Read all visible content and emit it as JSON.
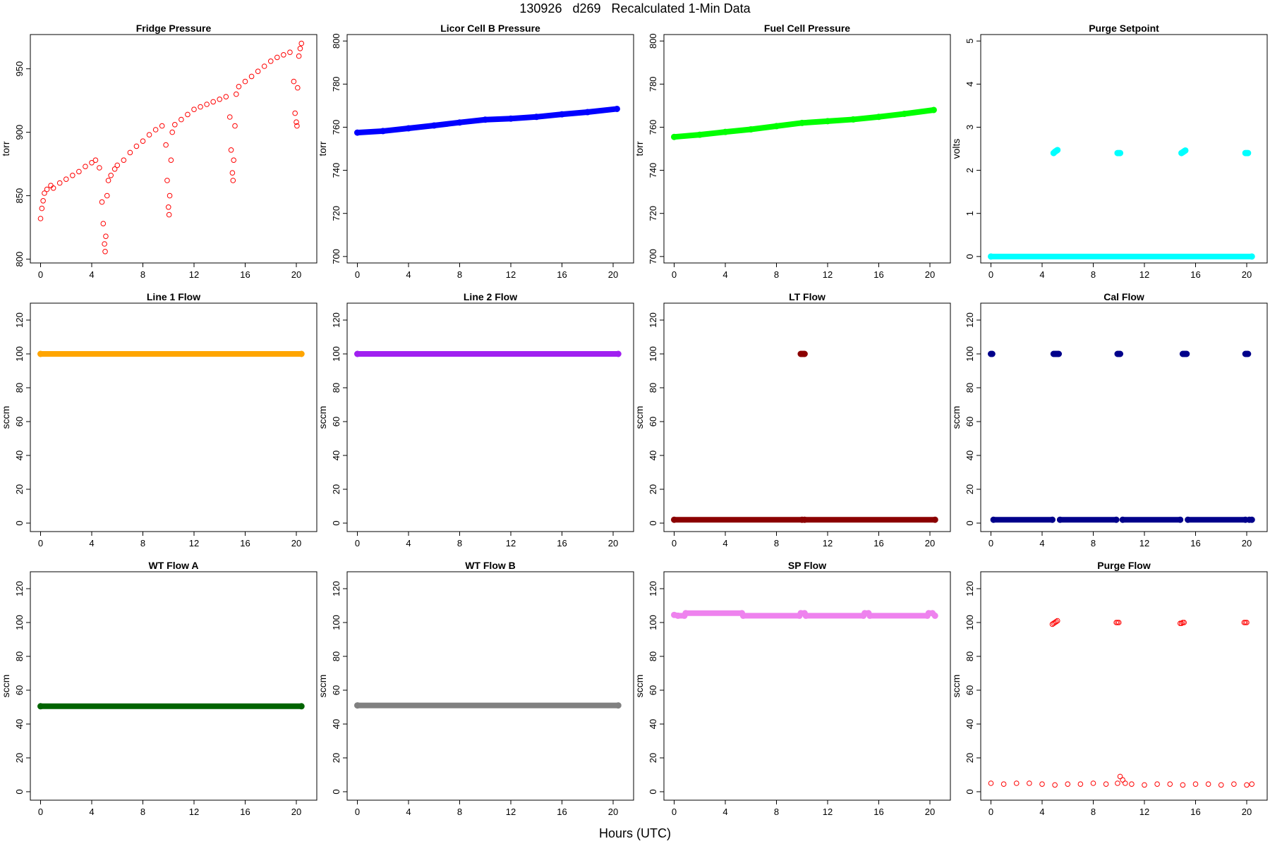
{
  "figure": {
    "title": "130926   d269   Recalculated 1-Min Data",
    "xlabel": "Hours (UTC)"
  },
  "chart_data": [
    {
      "type": "scatter",
      "title": "Fridge Pressure",
      "ylabel": "torr",
      "color": "#ff0000",
      "marker": "open-circle",
      "xlim": [
        -0.8,
        21.6
      ],
      "ylim": [
        797,
        977
      ],
      "xticks": [
        0,
        4,
        8,
        12,
        16,
        20
      ],
      "yticks": [
        800,
        850,
        900,
        950
      ],
      "series": [
        {
          "x": [
            0.0,
            0.1,
            0.2,
            0.3,
            0.5,
            0.8,
            1.0,
            1.5,
            2.0,
            2.5,
            3.0,
            3.5,
            4.0,
            4.3,
            4.6,
            4.8,
            4.9,
            5.0,
            5.05,
            5.1,
            5.2,
            5.3,
            5.5,
            5.8,
            6.0,
            6.5,
            7.0,
            7.5,
            8.0,
            8.5,
            9.0,
            9.5,
            9.8,
            9.9,
            10.0,
            10.05,
            10.1,
            10.2,
            10.3,
            10.5,
            11.0,
            11.5,
            12.0,
            12.5,
            13.0,
            13.5,
            14.0,
            14.5,
            14.8,
            14.9,
            15.0,
            15.05,
            15.1,
            15.2,
            15.3,
            15.5,
            16.0,
            16.5,
            17.0,
            17.5,
            18.0,
            18.5,
            19.0,
            19.5,
            19.8,
            19.9,
            20.0,
            20.05,
            20.1,
            20.2,
            20.3,
            20.4
          ],
          "y": [
            832,
            840,
            846,
            852,
            855,
            858,
            856,
            860,
            863,
            866,
            869,
            873,
            876,
            878,
            872,
            845,
            828,
            812,
            806,
            818,
            850,
            862,
            866,
            871,
            874,
            878,
            884,
            889,
            893,
            898,
            902,
            905,
            890,
            862,
            841,
            835,
            850,
            878,
            900,
            906,
            910,
            914,
            918,
            920,
            922,
            924,
            926,
            928,
            912,
            886,
            868,
            862,
            878,
            905,
            930,
            936,
            940,
            944,
            948,
            952,
            956,
            959,
            961,
            963,
            940,
            915,
            908,
            905,
            935,
            960,
            966,
            970
          ]
        }
      ]
    },
    {
      "type": "scatter",
      "title": "Licor Cell B Pressure",
      "ylabel": "torr",
      "color": "#0000ff",
      "marker": "filled-band",
      "xlim": [
        -0.8,
        21.6
      ],
      "ylim": [
        697,
        803
      ],
      "xticks": [
        0,
        4,
        8,
        12,
        16,
        20
      ],
      "yticks": [
        700,
        720,
        740,
        760,
        780,
        800
      ],
      "series": [
        {
          "x": [
            0.0,
            2.0,
            4.0,
            6.0,
            8.0,
            10.0,
            12.0,
            14.0,
            16.0,
            18.0,
            20.3
          ],
          "y": [
            757.5,
            758.2,
            759.5,
            760.8,
            762.2,
            763.5,
            764.0,
            764.8,
            766.0,
            767.0,
            768.5
          ]
        }
      ]
    },
    {
      "type": "scatter",
      "title": "Fuel Cell Pressure",
      "ylabel": "torr",
      "color": "#00ff00",
      "marker": "filled-band",
      "xlim": [
        -0.8,
        21.6
      ],
      "ylim": [
        697,
        803
      ],
      "xticks": [
        0,
        4,
        8,
        12,
        16,
        20
      ],
      "yticks": [
        700,
        720,
        740,
        760,
        780,
        800
      ],
      "series": [
        {
          "x": [
            0.0,
            2.0,
            4.0,
            6.0,
            8.0,
            10.0,
            12.0,
            14.0,
            16.0,
            18.0,
            20.3
          ],
          "y": [
            755.5,
            756.5,
            757.8,
            759.0,
            760.5,
            762.0,
            762.8,
            763.6,
            764.8,
            766.2,
            768.0
          ]
        }
      ]
    },
    {
      "type": "scatter",
      "title": "Purge Setpoint",
      "ylabel": "volts",
      "color": "#00ffff",
      "marker": "filled-band",
      "xlim": [
        -0.8,
        21.6
      ],
      "ylim": [
        -0.15,
        5.15
      ],
      "xticks": [
        0,
        4,
        8,
        12,
        16,
        20
      ],
      "yticks": [
        0,
        1,
        2,
        3,
        4,
        5
      ],
      "series": [
        {
          "x": [
            0.0,
            20.4
          ],
          "y": [
            0.0,
            0.0
          ]
        },
        {
          "x": [
            4.9,
            5.0,
            5.1,
            5.2
          ],
          "y": [
            2.4,
            2.43,
            2.45,
            2.47
          ]
        },
        {
          "x": [
            9.9,
            10.0,
            10.1
          ],
          "y": [
            2.4,
            2.4,
            2.4
          ]
        },
        {
          "x": [
            14.9,
            15.0,
            15.1,
            15.2
          ],
          "y": [
            2.4,
            2.42,
            2.44,
            2.46
          ]
        },
        {
          "x": [
            19.9,
            20.0,
            20.1
          ],
          "y": [
            2.4,
            2.4,
            2.4
          ]
        }
      ]
    },
    {
      "type": "scatter",
      "title": "Line 1 Flow",
      "ylabel": "sccm",
      "color": "#ffa500",
      "marker": "filled-band",
      "xlim": [
        -0.8,
        21.6
      ],
      "ylim": [
        -5,
        130
      ],
      "xticks": [
        0,
        4,
        8,
        12,
        16,
        20
      ],
      "yticks": [
        0,
        20,
        40,
        60,
        80,
        100,
        120
      ],
      "series": [
        {
          "x": [
            0.0,
            20.4
          ],
          "y": [
            100,
            100
          ]
        }
      ]
    },
    {
      "type": "scatter",
      "title": "Line 2 Flow",
      "ylabel": "sccm",
      "color": "#a020f0",
      "marker": "filled-band",
      "xlim": [
        -0.8,
        21.6
      ],
      "ylim": [
        -5,
        130
      ],
      "xticks": [
        0,
        4,
        8,
        12,
        16,
        20
      ],
      "yticks": [
        0,
        20,
        40,
        60,
        80,
        100,
        120
      ],
      "series": [
        {
          "x": [
            0.0,
            20.4
          ],
          "y": [
            100,
            100
          ]
        }
      ]
    },
    {
      "type": "scatter",
      "title": "LT Flow",
      "ylabel": "sccm",
      "color": "#8b0000",
      "marker": "filled-band",
      "xlim": [
        -0.8,
        21.6
      ],
      "ylim": [
        -5,
        130
      ],
      "xticks": [
        0,
        4,
        8,
        12,
        16,
        20
      ],
      "yticks": [
        0,
        20,
        40,
        60,
        80,
        100,
        120
      ],
      "series": [
        {
          "x": [
            0.0,
            10.0
          ],
          "y": [
            2,
            2
          ]
        },
        {
          "x": [
            10.2,
            20.4
          ],
          "y": [
            2,
            2
          ]
        },
        {
          "x": [
            9.9,
            10.0,
            10.1,
            10.2
          ],
          "y": [
            100,
            100,
            100,
            100
          ]
        }
      ]
    },
    {
      "type": "scatter",
      "title": "Cal Flow",
      "ylabel": "sccm",
      "color": "#00008b",
      "marker": "filled-band",
      "xlim": [
        -0.8,
        21.6
      ],
      "ylim": [
        -5,
        130
      ],
      "xticks": [
        0,
        4,
        8,
        12,
        16,
        20
      ],
      "yticks": [
        0,
        20,
        40,
        60,
        80,
        100,
        120
      ],
      "series": [
        {
          "x": [
            0.2,
            4.8
          ],
          "y": [
            2,
            2
          ]
        },
        {
          "x": [
            5.4,
            9.8
          ],
          "y": [
            2,
            2
          ]
        },
        {
          "x": [
            10.3,
            14.8
          ],
          "y": [
            2,
            2
          ]
        },
        {
          "x": [
            15.4,
            19.9
          ],
          "y": [
            2,
            2
          ]
        },
        {
          "x": [
            20.2,
            20.4
          ],
          "y": [
            2,
            2
          ]
        },
        {
          "x": [
            0.0,
            0.1
          ],
          "y": [
            100,
            100
          ]
        },
        {
          "x": [
            4.9,
            5.0,
            5.1,
            5.2,
            5.3
          ],
          "y": [
            100,
            100,
            100,
            100,
            100
          ]
        },
        {
          "x": [
            9.9,
            10.0,
            10.1
          ],
          "y": [
            100,
            100,
            100
          ]
        },
        {
          "x": [
            15.0,
            15.1,
            15.2,
            15.3
          ],
          "y": [
            100,
            100,
            100,
            100
          ]
        },
        {
          "x": [
            19.9,
            20.0,
            20.1
          ],
          "y": [
            100,
            100,
            100
          ]
        }
      ]
    },
    {
      "type": "scatter",
      "title": "WT Flow A",
      "ylabel": "sccm",
      "color": "#006400",
      "marker": "filled-band",
      "xlim": [
        -0.8,
        21.6
      ],
      "ylim": [
        -5,
        130
      ],
      "xticks": [
        0,
        4,
        8,
        12,
        16,
        20
      ],
      "yticks": [
        0,
        20,
        40,
        60,
        80,
        100,
        120
      ],
      "series": [
        {
          "x": [
            0.0,
            20.4
          ],
          "y": [
            50.5,
            50.5
          ]
        }
      ]
    },
    {
      "type": "scatter",
      "title": "WT Flow B",
      "ylabel": "sccm",
      "color": "#808080",
      "marker": "filled-band",
      "xlim": [
        -0.8,
        21.6
      ],
      "ylim": [
        -5,
        130
      ],
      "xticks": [
        0,
        4,
        8,
        12,
        16,
        20
      ],
      "yticks": [
        0,
        20,
        40,
        60,
        80,
        100,
        120
      ],
      "series": [
        {
          "x": [
            0.0,
            20.4
          ],
          "y": [
            51,
            51
          ]
        }
      ]
    },
    {
      "type": "scatter",
      "title": "SP Flow",
      "ylabel": "sccm",
      "color": "#ee82ee",
      "marker": "filled-band",
      "xlim": [
        -0.8,
        21.6
      ],
      "ylim": [
        -5,
        130
      ],
      "xticks": [
        0,
        4,
        8,
        12,
        16,
        20
      ],
      "yticks": [
        0,
        20,
        40,
        60,
        80,
        100,
        120
      ],
      "series": [
        {
          "x": [
            0.0,
            0.3,
            0.8,
            0.9,
            5.3,
            5.4,
            9.8,
            9.9,
            10.2,
            10.3,
            14.8,
            14.9,
            15.2,
            15.3,
            19.8,
            19.9,
            20.2,
            20.4
          ],
          "y": [
            104.5,
            104,
            104,
            105.5,
            105.5,
            104,
            104,
            105.5,
            105.5,
            104,
            104,
            105.5,
            105.5,
            104,
            104,
            105.5,
            105.5,
            104
          ]
        }
      ]
    },
    {
      "type": "scatter",
      "title": "Purge Flow",
      "ylabel": "sccm",
      "color": "#ff0000",
      "marker": "open-circle",
      "xlim": [
        -0.8,
        21.6
      ],
      "ylim": [
        -5,
        130
      ],
      "xticks": [
        0,
        4,
        8,
        12,
        16,
        20
      ],
      "yticks": [
        0,
        20,
        40,
        60,
        80,
        100,
        120
      ],
      "series": [
        {
          "x": [
            0.0,
            1.0,
            2.0,
            3.0,
            4.0,
            5.0,
            6.0,
            7.0,
            8.0,
            9.0,
            9.9,
            10.1,
            10.3,
            10.5,
            11.0,
            12.0,
            13.0,
            14.0,
            15.0,
            16.0,
            17.0,
            18.0,
            19.0,
            20.0,
            20.4
          ],
          "y": [
            5,
            4.5,
            5,
            5,
            4.5,
            4,
            4.5,
            4.5,
            5,
            4.5,
            5,
            9,
            7,
            5,
            4.5,
            4,
            4.5,
            4.5,
            4,
            4.5,
            4.5,
            4,
            4.5,
            4,
            4.5
          ]
        },
        {
          "x": [
            4.8,
            4.9,
            5.0,
            5.1,
            5.2
          ],
          "y": [
            99,
            99.5,
            100,
            100.5,
            101
          ]
        },
        {
          "x": [
            9.8,
            9.9,
            10.0
          ],
          "y": [
            100,
            100,
            100
          ]
        },
        {
          "x": [
            14.8,
            14.9,
            15.0,
            15.1
          ],
          "y": [
            99.5,
            99.5,
            100,
            100
          ]
        },
        {
          "x": [
            19.8,
            19.9,
            20.0
          ],
          "y": [
            100,
            100,
            100
          ]
        }
      ]
    }
  ]
}
